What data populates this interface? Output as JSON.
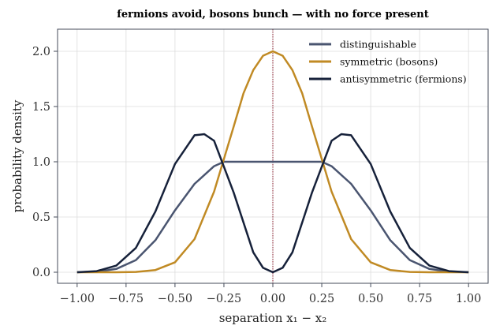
{
  "chart_data": {
    "type": "line",
    "title": "fermions avoid, bosons bunch — with no force present",
    "xlabel": "separation x₁ − x₂",
    "ylabel": "probability density",
    "xlim": [
      -1.1,
      1.1
    ],
    "ylim": [
      -0.1,
      2.2
    ],
    "xticks": [
      -1.0,
      -0.75,
      -0.5,
      -0.25,
      0.0,
      0.25,
      0.5,
      0.75,
      1.0
    ],
    "xtick_labels": [
      "−1.00",
      "−0.75",
      "−0.50",
      "−0.25",
      "0.00",
      "0.25",
      "0.50",
      "0.75",
      "1.00"
    ],
    "yticks": [
      0.0,
      0.5,
      1.0,
      1.5,
      2.0
    ],
    "ytick_labels": [
      "0.0",
      "0.5",
      "1.0",
      "1.5",
      "2.0"
    ],
    "grid": true,
    "legend_position": "top-right",
    "reference_line": {
      "x": 0.0,
      "color": "#8b1a2b",
      "style": "dotted"
    },
    "series": [
      {
        "name": "distinguishable",
        "color": "#4a5570",
        "x": [
          -1.0,
          -0.9,
          -0.8,
          -0.7,
          -0.6,
          -0.5,
          -0.4,
          -0.3,
          -0.25,
          -0.2,
          -0.1,
          0.0,
          0.1,
          0.2,
          0.25,
          0.3,
          0.4,
          0.5,
          0.6,
          0.7,
          0.8,
          0.9,
          1.0
        ],
        "y": [
          0.0,
          0.005,
          0.03,
          0.11,
          0.29,
          0.56,
          0.8,
          0.96,
          1.0,
          1.0,
          1.0,
          1.0,
          1.0,
          1.0,
          1.0,
          0.96,
          0.8,
          0.56,
          0.29,
          0.11,
          0.03,
          0.005,
          0.0
        ]
      },
      {
        "name": "symmetric (bosons)",
        "color": "#c08a24",
        "x": [
          -1.0,
          -0.9,
          -0.8,
          -0.7,
          -0.6,
          -0.5,
          -0.4,
          -0.3,
          -0.2,
          -0.15,
          -0.1,
          -0.05,
          0.0,
          0.05,
          0.1,
          0.15,
          0.2,
          0.3,
          0.4,
          0.5,
          0.6,
          0.7,
          0.8,
          0.9,
          1.0
        ],
        "y": [
          0.0,
          0.0,
          0.0,
          0.003,
          0.02,
          0.09,
          0.3,
          0.73,
          1.32,
          1.62,
          1.83,
          1.96,
          2.0,
          1.96,
          1.83,
          1.62,
          1.32,
          0.73,
          0.3,
          0.09,
          0.02,
          0.003,
          0.0,
          0.0,
          0.0
        ]
      },
      {
        "name": "antisymmetric (fermions)",
        "color": "#16213a",
        "x": [
          -1.0,
          -0.9,
          -0.8,
          -0.7,
          -0.6,
          -0.5,
          -0.4,
          -0.35,
          -0.3,
          -0.2,
          -0.1,
          -0.05,
          0.0,
          0.05,
          0.1,
          0.2,
          0.3,
          0.35,
          0.4,
          0.5,
          0.6,
          0.7,
          0.8,
          0.9,
          1.0
        ],
        "y": [
          0.0,
          0.01,
          0.06,
          0.22,
          0.55,
          0.98,
          1.24,
          1.25,
          1.19,
          0.72,
          0.18,
          0.04,
          0.0,
          0.04,
          0.18,
          0.72,
          1.19,
          1.25,
          1.24,
          0.98,
          0.55,
          0.22,
          0.06,
          0.01,
          0.0
        ]
      }
    ]
  }
}
